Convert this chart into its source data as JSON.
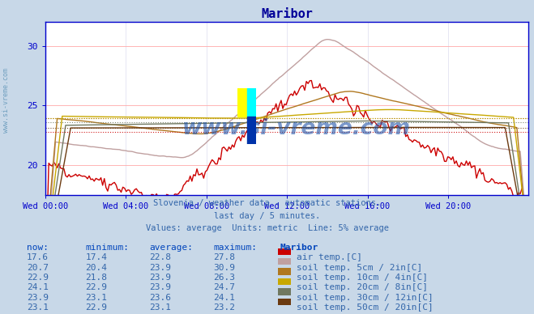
{
  "title": "Maribor",
  "title_color": "#000099",
  "bg_color": "#c8d8e8",
  "plot_bg_color": "#ffffff",
  "grid_color_h": "#ffaaaa",
  "grid_color_v": "#ddddff",
  "axis_color": "#0000cc",
  "watermark_text": "www.si-vreme.com",
  "watermark_color": "#2255aa",
  "subtitle_lines": [
    "Slovenia / weather data - automatic stations.",
    "last day / 5 minutes.",
    "Values: average  Units: metric  Line: 5% average"
  ],
  "xlabel_ticks": [
    "Wed 00:00",
    "Wed 04:00",
    "Wed 08:00",
    "Wed 12:00",
    "Wed 16:00",
    "Wed 20:00"
  ],
  "ylim": [
    17.5,
    32
  ],
  "yticks": [
    20,
    25,
    30
  ],
  "series_colors": [
    "#cc0000",
    "#c0a0a0",
    "#b07820",
    "#c8a800",
    "#707860",
    "#6b3a10"
  ],
  "series_labels": [
    "air temp.[C]",
    "soil temp. 5cm / 2in[C]",
    "soil temp. 10cm / 4in[C]",
    "soil temp. 20cm / 8in[C]",
    "soil temp. 30cm / 12in[C]",
    "soil temp. 50cm / 20in[C]"
  ],
  "table_headers": [
    "now:",
    "minimum:",
    "average:",
    "maximum:",
    "Maribor"
  ],
  "table_data": [
    [
      "17.6",
      "17.4",
      "22.8",
      "27.8"
    ],
    [
      "20.7",
      "20.4",
      "23.9",
      "30.9"
    ],
    [
      "22.9",
      "21.8",
      "23.9",
      "26.3"
    ],
    [
      "24.1",
      "22.9",
      "23.9",
      "24.7"
    ],
    [
      "23.9",
      "23.1",
      "23.6",
      "24.1"
    ],
    [
      "23.1",
      "22.9",
      "23.1",
      "23.2"
    ]
  ],
  "text_color": "#3366aa",
  "header_color": "#0044bb",
  "n_points": 288,
  "avgs": [
    22.8,
    23.9,
    23.9,
    23.9,
    23.6,
    23.1
  ]
}
